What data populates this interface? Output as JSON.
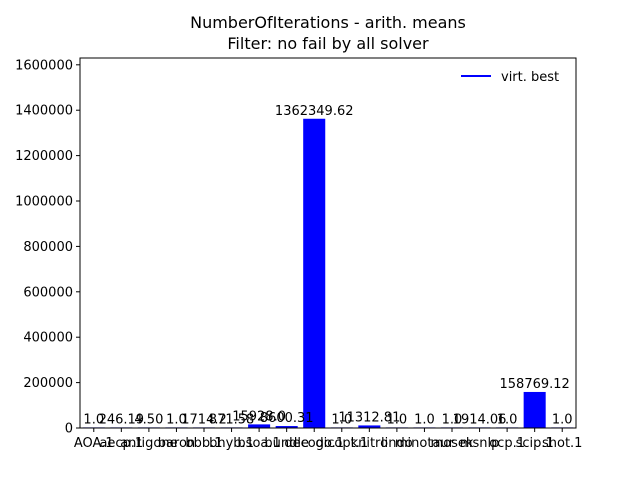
{
  "chart_data": {
    "type": "bar",
    "title": [
      "NumberOfIterations - arith. means",
      "Filter: no fail by all solver"
    ],
    "xlabel": "",
    "ylabel": "",
    "ylim": [
      0,
      1630000
    ],
    "yticks": [
      0,
      200000,
      400000,
      600000,
      800000,
      1000000,
      1200000,
      1400000,
      1600000
    ],
    "ytick_labels": [
      "0",
      "200000",
      "400000",
      "600000",
      "800000",
      "1000000",
      "1200000",
      "1400000",
      "1600000"
    ],
    "grid": false,
    "legend_position": "top-right",
    "legend": [
      {
        "label": "virt. best",
        "color": "#0000ff"
      }
    ],
    "bar_color": "#0000ff",
    "categories": [
      "AOA.1",
      "aecp.1",
      "antigone",
      "baron",
      "bbb.1",
      "bhyb.1",
      "bsoa.1",
      "bundle",
      "decogo.1",
      "dicopt.1",
      "knitro",
      "lindo",
      "minotaur",
      "mosek",
      "msnlp",
      "ocp.1",
      "scip.1",
      "shot.1"
    ],
    "category_labels_visible": [
      "AOA.1",
      "aecp.1",
      "antigone",
      "baron",
      "bbb.1",
      "bhyb.1",
      "bsoa.1",
      "bundle",
      "decogo.1",
      "dicopt.1",
      "knitro",
      "lindo",
      "minotaur",
      "mosek",
      "msnlp",
      "ocp.1",
      "scip.1",
      "shot.1"
    ],
    "values": [
      1.0,
      246.19,
      4.5,
      1.0,
      1714.2,
      871.58,
      15928.0,
      8600.31,
      1362349.62,
      1.0,
      11312.81,
      1.0,
      1.0,
      1.0,
      1914.06,
      1.0,
      158769.12,
      1.0
    ],
    "data_labels": [
      "1.0",
      "246.19",
      "4.50",
      "1.0",
      "1714.2",
      "871.58",
      "15928.0",
      "8600.31",
      "1362349.62",
      "1.0",
      "11312.81",
      "1.0",
      "1.0",
      "1.0",
      "1914.06",
      "1.0",
      "158769.12",
      "1.0"
    ]
  }
}
